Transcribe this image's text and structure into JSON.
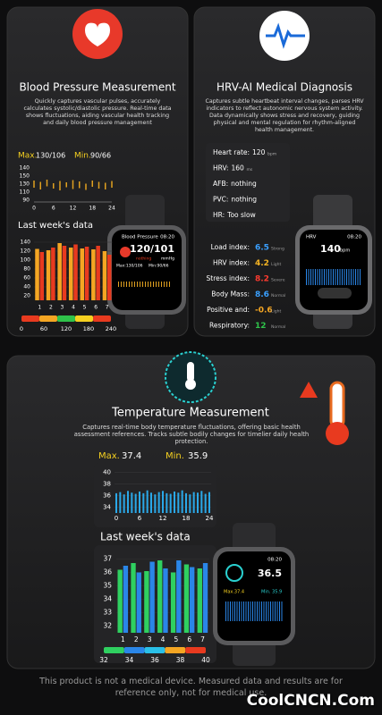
{
  "bp": {
    "title": "Blood Pressure Measurement",
    "description": "Quickly captures vascular pulses, accurately calculates systolic/diastolic pressure. Real-time data shows fluctuations, aiding vascular health tracking and daily blood pressure management",
    "max_label": "Max.",
    "max_value": "130/106",
    "min_label": "Min.",
    "min_value": "90/66",
    "day_chart": {
      "y_labels": [
        "140",
        "150",
        "130",
        "110",
        "90"
      ],
      "ylim": [
        80,
        160
      ],
      "xlim": [
        0,
        24
      ],
      "xticks": [
        0,
        6,
        12,
        18,
        24
      ],
      "x": [
        0,
        2,
        4,
        6,
        8,
        10,
        12,
        14,
        16,
        18,
        20,
        22,
        24
      ],
      "high": [
        128,
        125,
        130,
        122,
        127,
        124,
        129,
        126,
        121,
        128,
        125,
        123,
        127
      ],
      "low": [
        112,
        108,
        115,
        110,
        106,
        113,
        109,
        111,
        107,
        114,
        110,
        108,
        112
      ],
      "color": "#e0a020"
    },
    "week_title": "Last week's data",
    "week_chart": {
      "ylim": [
        10,
        150
      ],
      "yticks": [
        140,
        120,
        100,
        80,
        60,
        40,
        20
      ],
      "xticks": [
        1,
        2,
        3,
        4,
        5,
        6,
        7
      ],
      "series": [
        {
          "color": "#f5a623",
          "values": [
            125,
            122,
            138,
            128,
            126,
            124,
            120
          ]
        },
        {
          "color": "#e83a1f",
          "values": [
            118,
            128,
            132,
            135,
            130,
            132,
            112
          ]
        }
      ]
    },
    "scale": {
      "ticks": [
        0,
        60,
        120,
        180,
        240
      ],
      "colors": [
        "#e83a1f",
        "#f5a623",
        "#2fc24a",
        "#f5d020",
        "#e83a1f"
      ]
    },
    "watch": {
      "title": "Blood Pressure",
      "time": "08:20",
      "value": "120/101",
      "unit": "mmHg",
      "status": "nothing",
      "max": "Max:130/106",
      "min": "Min:90/66"
    }
  },
  "hrv": {
    "title": "HRV-AI Medical Diagnosis",
    "description": "Captures subtle heartbeat interval changes, parses HRV indicators to reflect autonomic nervous system activity. Data dynamically shows stress and recovery, guiding physical and mental regulation for rhythm-aligned health management.",
    "list": [
      {
        "label": "Heart rate:",
        "value": "120",
        "unit": "bpm"
      },
      {
        "label": "HRV:",
        "value": "160",
        "unit": "ms"
      },
      {
        "label": "AFB:",
        "value": "nothing"
      },
      {
        "label": "PVC:",
        "value": "nothing"
      },
      {
        "label": "HR:",
        "value": "Too slow"
      }
    ],
    "indexes": [
      {
        "label": "Load index:",
        "value": 6.5,
        "level": "Strong",
        "color": "#3aa0ff"
      },
      {
        "label": "HRV index:",
        "value": 4.2,
        "level": "Light",
        "color": "#f5b323"
      },
      {
        "label": "Stress index:",
        "value": 8.2,
        "level": "Severe",
        "color": "#ff3b30"
      },
      {
        "label": "Body Mass:",
        "value": 8.6,
        "level": "Normal",
        "color": "#3aa0ff"
      },
      {
        "label": "Positive and:",
        "value": -0.6,
        "level": "Light",
        "color": "#f5a623"
      },
      {
        "label": "Respiratory:",
        "value": 12,
        "level": "Normal",
        "color": "#2fc24a"
      }
    ],
    "watch": {
      "title": "HRV",
      "time": "08:20",
      "value": "140",
      "unit": "bpm"
    }
  },
  "temp": {
    "title": "Temperature Measurement",
    "description": "Captures real-time body temperature fluctuations, offering basic health assessment references. Tracks subtle bodily changes for timelier daily health protection.",
    "max_label": "Max.",
    "max_value": "37.4",
    "min_label": "Min.",
    "min_value": "35.9",
    "day_chart": {
      "ylim": [
        33,
        41
      ],
      "yticks": [
        40,
        38,
        36,
        34
      ],
      "xlim": [
        0,
        24
      ],
      "xticks": [
        0,
        6,
        12,
        18,
        24
      ],
      "x": [
        0,
        1,
        2,
        3,
        4,
        5,
        6,
        7,
        8,
        9,
        10,
        11,
        12,
        13,
        14,
        15,
        16,
        17,
        18,
        19,
        20,
        21,
        22,
        23,
        24
      ],
      "values": [
        36.4,
        36.6,
        36.2,
        36.8,
        36.5,
        36.3,
        36.7,
        36.4,
        36.9,
        36.5,
        36.2,
        36.6,
        36.8,
        36.4,
        36.3,
        36.7,
        36.5,
        36.9,
        36.4,
        36.2,
        36.6,
        36.5,
        36.8,
        36.3,
        36.6
      ],
      "color": "#2aa8e8"
    },
    "week_title": "Last week's data",
    "week_chart": {
      "ylim": [
        31.5,
        37.5
      ],
      "yticks": [
        37,
        36,
        35,
        34,
        33,
        32
      ],
      "xticks": [
        1,
        2,
        3,
        4,
        5,
        6,
        7
      ],
      "series": [
        {
          "color": "#2fd060",
          "values": [
            36.2,
            36.7,
            36.1,
            36.9,
            36.0,
            36.6,
            36.3
          ]
        },
        {
          "color": "#2a86e8",
          "values": [
            36.5,
            36.0,
            36.8,
            36.3,
            36.9,
            36.4,
            36.7
          ]
        }
      ]
    },
    "scale": {
      "ticks": [
        32,
        34,
        36,
        38,
        40
      ],
      "colors": [
        "#2fd060",
        "#2a86e8",
        "#2ac0e8",
        "#f5a623",
        "#e83a1f"
      ]
    },
    "watch": {
      "time": "08:20",
      "value": "36.5",
      "max": "Max.37.4",
      "min": "Min. 35.9"
    }
  },
  "footer": "This product is not a medical device. Measured data and results are for reference only, not for medical use.",
  "watermark": "CoolCNCN.Com"
}
